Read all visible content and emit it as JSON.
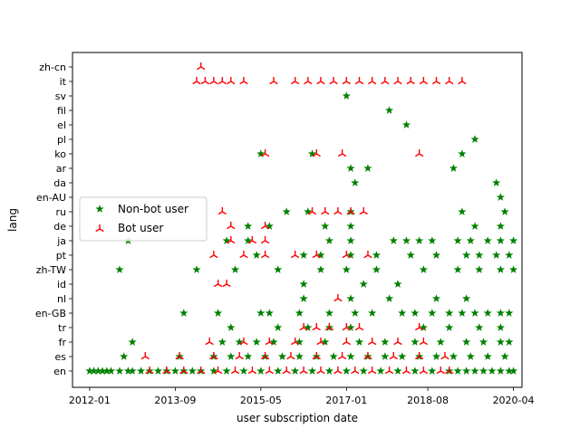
{
  "chart_data": {
    "type": "scatter",
    "title": "",
    "xlabel": "user subscription date",
    "ylabel": "lang",
    "x_ticks": [
      "2012-01",
      "2013-09",
      "2015-05",
      "2017-01",
      "2018-08",
      "2020-04"
    ],
    "x_range": [
      "2011-09",
      "2020-06"
    ],
    "categories": [
      "en",
      "es",
      "fr",
      "tr",
      "en-GB",
      "nl",
      "id",
      "zh-TW",
      "pt",
      "ja",
      "de",
      "ru",
      "en-AU",
      "da",
      "ar",
      "ko",
      "pl",
      "el",
      "fil",
      "sv",
      "it",
      "zh-cn"
    ],
    "legend_position": "center-left",
    "series": [
      {
        "name": "Non-bot user",
        "marker": "star",
        "color": "#008000",
        "points": [
          [
            "2012-01",
            "en"
          ],
          [
            "2012-02",
            "en"
          ],
          [
            "2012-03",
            "en"
          ],
          [
            "2012-04",
            "en"
          ],
          [
            "2012-05",
            "en"
          ],
          [
            "2012-06",
            "en"
          ],
          [
            "2012-08",
            "en"
          ],
          [
            "2012-10",
            "en"
          ],
          [
            "2012-11",
            "en"
          ],
          [
            "2013-01",
            "en"
          ],
          [
            "2013-03",
            "en"
          ],
          [
            "2013-05",
            "en"
          ],
          [
            "2013-07",
            "en"
          ],
          [
            "2013-09",
            "en"
          ],
          [
            "2013-11",
            "en"
          ],
          [
            "2014-01",
            "en"
          ],
          [
            "2014-03",
            "en"
          ],
          [
            "2014-06",
            "en"
          ],
          [
            "2014-09",
            "en"
          ],
          [
            "2015-01",
            "en"
          ],
          [
            "2015-05",
            "en"
          ],
          [
            "2015-09",
            "en"
          ],
          [
            "2016-01",
            "en"
          ],
          [
            "2016-05",
            "en"
          ],
          [
            "2016-09",
            "en"
          ],
          [
            "2017-01",
            "en"
          ],
          [
            "2017-05",
            "en"
          ],
          [
            "2017-09",
            "en"
          ],
          [
            "2018-01",
            "en"
          ],
          [
            "2018-05",
            "en"
          ],
          [
            "2018-09",
            "en"
          ],
          [
            "2019-01",
            "en"
          ],
          [
            "2019-03",
            "en"
          ],
          [
            "2019-05",
            "en"
          ],
          [
            "2019-07",
            "en"
          ],
          [
            "2019-09",
            "en"
          ],
          [
            "2019-11",
            "en"
          ],
          [
            "2020-01",
            "en"
          ],
          [
            "2020-03",
            "en"
          ],
          [
            "2020-04",
            "en"
          ],
          [
            "2012-09",
            "es"
          ],
          [
            "2013-10",
            "es"
          ],
          [
            "2014-06",
            "es"
          ],
          [
            "2014-10",
            "es"
          ],
          [
            "2015-02",
            "es"
          ],
          [
            "2015-06",
            "es"
          ],
          [
            "2015-10",
            "es"
          ],
          [
            "2016-02",
            "es"
          ],
          [
            "2016-06",
            "es"
          ],
          [
            "2016-10",
            "es"
          ],
          [
            "2017-02",
            "es"
          ],
          [
            "2017-06",
            "es"
          ],
          [
            "2017-10",
            "es"
          ],
          [
            "2018-02",
            "es"
          ],
          [
            "2018-06",
            "es"
          ],
          [
            "2018-10",
            "es"
          ],
          [
            "2019-02",
            "es"
          ],
          [
            "2019-06",
            "es"
          ],
          [
            "2019-10",
            "es"
          ],
          [
            "2020-02",
            "es"
          ],
          [
            "2012-11",
            "fr"
          ],
          [
            "2014-08",
            "fr"
          ],
          [
            "2014-12",
            "fr"
          ],
          [
            "2015-04",
            "fr"
          ],
          [
            "2015-08",
            "fr"
          ],
          [
            "2016-02",
            "fr"
          ],
          [
            "2016-08",
            "fr"
          ],
          [
            "2017-04",
            "fr"
          ],
          [
            "2017-10",
            "fr"
          ],
          [
            "2018-05",
            "fr"
          ],
          [
            "2018-11",
            "fr"
          ],
          [
            "2019-05",
            "fr"
          ],
          [
            "2019-09",
            "fr"
          ],
          [
            "2020-01",
            "fr"
          ],
          [
            "2020-03",
            "fr"
          ],
          [
            "2014-10",
            "tr"
          ],
          [
            "2015-09",
            "tr"
          ],
          [
            "2016-04",
            "tr"
          ],
          [
            "2016-09",
            "tr"
          ],
          [
            "2017-02",
            "tr"
          ],
          [
            "2018-07",
            "tr"
          ],
          [
            "2019-01",
            "tr"
          ],
          [
            "2019-08",
            "tr"
          ],
          [
            "2020-01",
            "tr"
          ],
          [
            "2013-11",
            "en-GB"
          ],
          [
            "2014-07",
            "en-GB"
          ],
          [
            "2015-05",
            "en-GB"
          ],
          [
            "2015-07",
            "en-GB"
          ],
          [
            "2016-02",
            "en-GB"
          ],
          [
            "2016-09",
            "en-GB"
          ],
          [
            "2017-03",
            "en-GB"
          ],
          [
            "2017-07",
            "en-GB"
          ],
          [
            "2018-02",
            "en-GB"
          ],
          [
            "2018-05",
            "en-GB"
          ],
          [
            "2018-09",
            "en-GB"
          ],
          [
            "2019-01",
            "en-GB"
          ],
          [
            "2019-04",
            "en-GB"
          ],
          [
            "2019-07",
            "en-GB"
          ],
          [
            "2019-10",
            "en-GB"
          ],
          [
            "2020-01",
            "en-GB"
          ],
          [
            "2020-03",
            "en-GB"
          ],
          [
            "2016-03",
            "nl"
          ],
          [
            "2017-02",
            "nl"
          ],
          [
            "2017-11",
            "nl"
          ],
          [
            "2018-10",
            "nl"
          ],
          [
            "2019-05",
            "nl"
          ],
          [
            "2016-03",
            "id"
          ],
          [
            "2017-05",
            "id"
          ],
          [
            "2018-01",
            "id"
          ],
          [
            "2012-08",
            "zh-TW"
          ],
          [
            "2014-02",
            "zh-TW"
          ],
          [
            "2014-11",
            "zh-TW"
          ],
          [
            "2015-09",
            "zh-TW"
          ],
          [
            "2016-07",
            "zh-TW"
          ],
          [
            "2017-01",
            "zh-TW"
          ],
          [
            "2017-08",
            "zh-TW"
          ],
          [
            "2018-07",
            "zh-TW"
          ],
          [
            "2019-03",
            "zh-TW"
          ],
          [
            "2019-08",
            "zh-TW"
          ],
          [
            "2020-01",
            "zh-TW"
          ],
          [
            "2020-04",
            "zh-TW"
          ],
          [
            "2015-04",
            "pt"
          ],
          [
            "2016-03",
            "pt"
          ],
          [
            "2016-07",
            "pt"
          ],
          [
            "2017-02",
            "pt"
          ],
          [
            "2017-08",
            "pt"
          ],
          [
            "2018-04",
            "pt"
          ],
          [
            "2018-10",
            "pt"
          ],
          [
            "2019-05",
            "pt"
          ],
          [
            "2019-08",
            "pt"
          ],
          [
            "2019-12",
            "pt"
          ],
          [
            "2020-03",
            "pt"
          ],
          [
            "2012-10",
            "ja"
          ],
          [
            "2014-09",
            "ja"
          ],
          [
            "2015-02",
            "ja"
          ],
          [
            "2016-09",
            "ja"
          ],
          [
            "2017-02",
            "ja"
          ],
          [
            "2017-12",
            "ja"
          ],
          [
            "2018-03",
            "ja"
          ],
          [
            "2018-06",
            "ja"
          ],
          [
            "2018-09",
            "ja"
          ],
          [
            "2019-03",
            "ja"
          ],
          [
            "2019-06",
            "ja"
          ],
          [
            "2019-10",
            "ja"
          ],
          [
            "2020-01",
            "ja"
          ],
          [
            "2020-04",
            "ja"
          ],
          [
            "2015-02",
            "de"
          ],
          [
            "2015-07",
            "de"
          ],
          [
            "2016-08",
            "de"
          ],
          [
            "2017-02",
            "de"
          ],
          [
            "2019-07",
            "de"
          ],
          [
            "2020-01",
            "de"
          ],
          [
            "2015-11",
            "ru"
          ],
          [
            "2016-04",
            "ru"
          ],
          [
            "2017-02",
            "ru"
          ],
          [
            "2019-04",
            "ru"
          ],
          [
            "2020-02",
            "ru"
          ],
          [
            "2020-01",
            "en-AU"
          ],
          [
            "2017-03",
            "da"
          ],
          [
            "2019-12",
            "da"
          ],
          [
            "2017-02",
            "ar"
          ],
          [
            "2017-06",
            "ar"
          ],
          [
            "2019-02",
            "ar"
          ],
          [
            "2015-05",
            "ko"
          ],
          [
            "2016-05",
            "ko"
          ],
          [
            "2019-04",
            "ko"
          ],
          [
            "2019-07",
            "pl"
          ],
          [
            "2018-03",
            "el"
          ],
          [
            "2017-11",
            "fil"
          ],
          [
            "2017-01",
            "sv"
          ]
        ]
      },
      {
        "name": "Bot user",
        "marker": "tri_up",
        "color": "#ff0000",
        "points": [
          [
            "2013-03",
            "en"
          ],
          [
            "2013-07",
            "en"
          ],
          [
            "2013-11",
            "en"
          ],
          [
            "2014-03",
            "en"
          ],
          [
            "2014-07",
            "en"
          ],
          [
            "2014-11",
            "en"
          ],
          [
            "2015-03",
            "en"
          ],
          [
            "2015-07",
            "en"
          ],
          [
            "2015-11",
            "en"
          ],
          [
            "2016-03",
            "en"
          ],
          [
            "2016-07",
            "en"
          ],
          [
            "2016-11",
            "en"
          ],
          [
            "2017-03",
            "en"
          ],
          [
            "2017-07",
            "en"
          ],
          [
            "2017-11",
            "en"
          ],
          [
            "2018-03",
            "en"
          ],
          [
            "2018-07",
            "en"
          ],
          [
            "2018-11",
            "en"
          ],
          [
            "2019-01",
            "en"
          ],
          [
            "2013-02",
            "es"
          ],
          [
            "2013-10",
            "es"
          ],
          [
            "2014-06",
            "es"
          ],
          [
            "2014-12",
            "es"
          ],
          [
            "2015-06",
            "es"
          ],
          [
            "2015-12",
            "es"
          ],
          [
            "2016-06",
            "es"
          ],
          [
            "2016-12",
            "es"
          ],
          [
            "2017-06",
            "es"
          ],
          [
            "2017-12",
            "es"
          ],
          [
            "2018-06",
            "es"
          ],
          [
            "2018-12",
            "es"
          ],
          [
            "2014-05",
            "fr"
          ],
          [
            "2015-01",
            "fr"
          ],
          [
            "2015-07",
            "fr"
          ],
          [
            "2016-01",
            "fr"
          ],
          [
            "2016-07",
            "fr"
          ],
          [
            "2017-01",
            "fr"
          ],
          [
            "2017-07",
            "fr"
          ],
          [
            "2018-01",
            "fr"
          ],
          [
            "2018-07",
            "fr"
          ],
          [
            "2016-03",
            "tr"
          ],
          [
            "2016-06",
            "tr"
          ],
          [
            "2016-09",
            "tr"
          ],
          [
            "2017-01",
            "tr"
          ],
          [
            "2017-04",
            "tr"
          ],
          [
            "2018-06",
            "tr"
          ],
          [
            "2016-11",
            "nl"
          ],
          [
            "2014-07",
            "id"
          ],
          [
            "2014-09",
            "id"
          ],
          [
            "2014-06",
            "pt"
          ],
          [
            "2015-01",
            "pt"
          ],
          [
            "2015-06",
            "pt"
          ],
          [
            "2016-01",
            "pt"
          ],
          [
            "2016-06",
            "pt"
          ],
          [
            "2017-01",
            "pt"
          ],
          [
            "2017-06",
            "pt"
          ],
          [
            "2014-10",
            "ja"
          ],
          [
            "2015-03",
            "ja"
          ],
          [
            "2015-06",
            "ja"
          ],
          [
            "2014-10",
            "de"
          ],
          [
            "2015-06",
            "de"
          ],
          [
            "2014-08",
            "ru"
          ],
          [
            "2016-05",
            "ru"
          ],
          [
            "2016-08",
            "ru"
          ],
          [
            "2016-11",
            "ru"
          ],
          [
            "2017-02",
            "ru"
          ],
          [
            "2017-05",
            "ru"
          ],
          [
            "2015-06",
            "ko"
          ],
          [
            "2016-06",
            "ko"
          ],
          [
            "2016-12",
            "ko"
          ],
          [
            "2018-06",
            "ko"
          ],
          [
            "2014-02",
            "it"
          ],
          [
            "2014-04",
            "it"
          ],
          [
            "2014-06",
            "it"
          ],
          [
            "2014-08",
            "it"
          ],
          [
            "2014-10",
            "it"
          ],
          [
            "2015-01",
            "it"
          ],
          [
            "2015-08",
            "it"
          ],
          [
            "2016-01",
            "it"
          ],
          [
            "2016-04",
            "it"
          ],
          [
            "2016-07",
            "it"
          ],
          [
            "2016-10",
            "it"
          ],
          [
            "2017-01",
            "it"
          ],
          [
            "2017-04",
            "it"
          ],
          [
            "2017-07",
            "it"
          ],
          [
            "2017-10",
            "it"
          ],
          [
            "2018-01",
            "it"
          ],
          [
            "2018-04",
            "it"
          ],
          [
            "2018-07",
            "it"
          ],
          [
            "2018-10",
            "it"
          ],
          [
            "2019-01",
            "it"
          ],
          [
            "2019-04",
            "it"
          ],
          [
            "2014-03",
            "zh-cn"
          ]
        ]
      }
    ]
  }
}
